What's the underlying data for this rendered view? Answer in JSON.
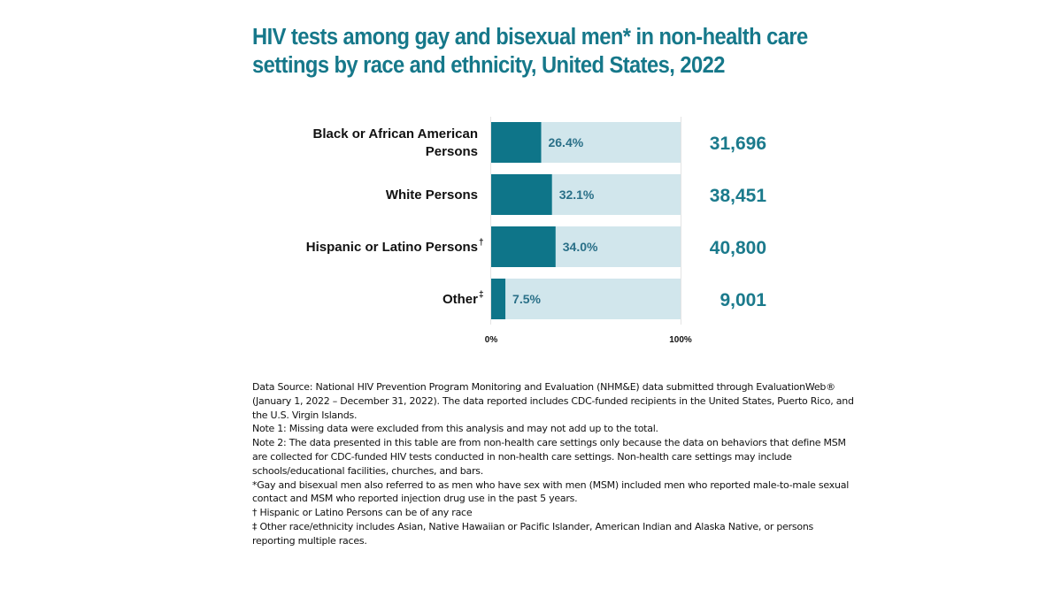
{
  "colors": {
    "title": "#16788a",
    "bar_fill": "#0e7589",
    "bar_track": "#d1e6ec",
    "pct_text": "#2a7088",
    "count_text": "#1b7a8c"
  },
  "title_lines": [
    "HIV tests among gay and bisexual men* in non-health care",
    "settings by race and ethnicity, United States, 2022"
  ],
  "chart_data": {
    "type": "bar",
    "orientation": "horizontal",
    "title": "HIV tests among gay and bisexual men* in non-health care settings by race and ethnicity, United States, 2022",
    "categories": [
      {
        "label_lines": [
          "Black or African American",
          "Persons"
        ],
        "sup": ""
      },
      {
        "label_lines": [
          "White Persons"
        ],
        "sup": ""
      },
      {
        "label_lines": [
          "Hispanic or Latino Persons"
        ],
        "sup": "†"
      },
      {
        "label_lines": [
          "Other"
        ],
        "sup": "‡"
      }
    ],
    "values": [
      26.4,
      32.1,
      34.0,
      7.5
    ],
    "value_labels": [
      "26.4%",
      "32.1%",
      "34.0%",
      "7.5%"
    ],
    "counts": [
      "31,696",
      "38,451",
      "40,800",
      "9,001"
    ],
    "xlim": [
      0,
      100
    ],
    "x_ticks": [
      "0%",
      "100%"
    ],
    "xlabel": "",
    "ylabel": "",
    "grid": false,
    "legend": "none"
  },
  "notes": [
    "Data Source: National HIV Prevention Program Monitoring and Evaluation (NHM&E) data submitted through EvaluationWeb® (January 1, 2022 – December 31, 2022). The data reported includes CDC-funded recipients in the United States, Puerto Rico, and the U.S. Virgin Islands.",
    "Note 1: Missing data were excluded from this analysis and may not add up to the total.",
    "Note 2: The data presented in this table are from non-health care settings only because the data on behaviors that define MSM are collected for CDC-funded HIV tests conducted in non-health care settings. Non-health care settings may include schools/educational facilities, churches, and bars.",
    "*Gay and bisexual men also referred to as men who have sex with men (MSM) included men who reported male-to-male sexual contact and MSM who reported injection drug use in the past 5 years.",
    "† Hispanic or Latino Persons can be of any race",
    "‡ Other race/ethnicity includes Asian, Native Hawaiian or Pacific Islander, American Indian and Alaska Native, or persons reporting multiple races."
  ]
}
